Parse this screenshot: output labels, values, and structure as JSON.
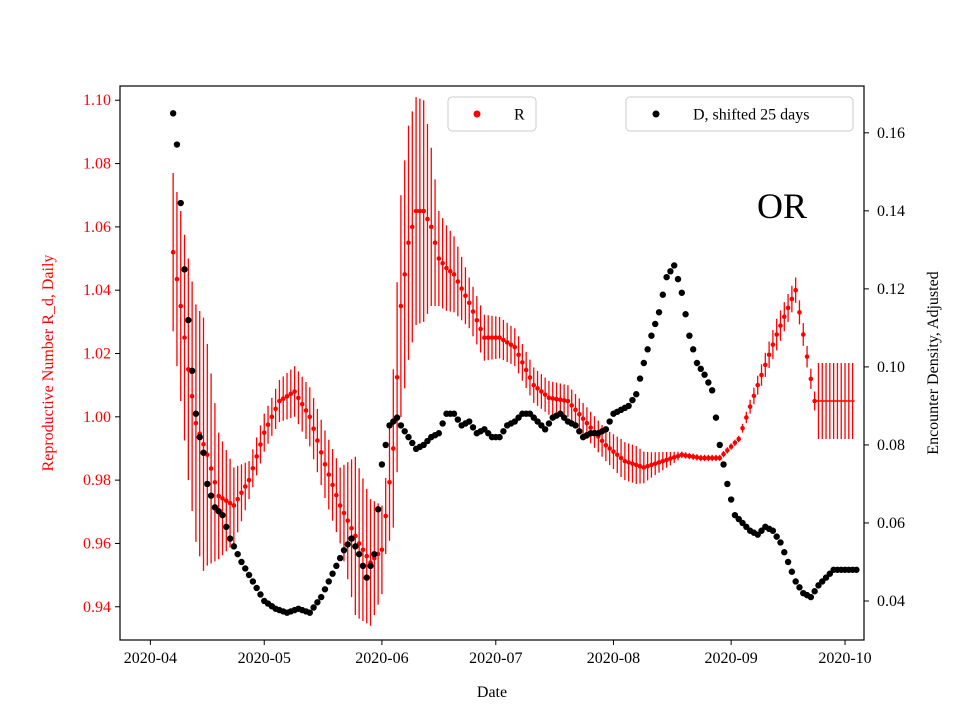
{
  "chart_data": {
    "type": "scatter",
    "annotation": "OR",
    "xlabel": "Date",
    "ylabel_left": "Reproductive Number R_d, Daily",
    "ylabel_right": "Encounter Density, Adjusted",
    "x_ticks": [
      "2020-04",
      "2020-05",
      "2020-06",
      "2020-07",
      "2020-08",
      "2020-09",
      "2020-10"
    ],
    "y_left_ticks": [
      "0.94",
      "0.96",
      "0.98",
      "1.00",
      "1.02",
      "1.04",
      "1.06",
      "1.08",
      "1.10"
    ],
    "y_right_ticks": [
      "0.04",
      "0.06",
      "0.08",
      "0.10",
      "0.12",
      "0.14",
      "0.16"
    ],
    "x_range_days": [
      -8,
      188
    ],
    "y_left_range": [
      0.9295,
      1.1045
    ],
    "y_right_range": [
      0.03,
      0.172
    ],
    "colors": {
      "R": "#ff0000",
      "D": "#000000",
      "left_axis": "#ff0000",
      "frame": "#000000"
    },
    "legend_R": "R",
    "legend_D": "D, shifted 25 days",
    "series": [
      {
        "name": "R",
        "note": "x = days since 2020-04-01; interior curve sampled at key points",
        "x": [
          6,
          8,
          10,
          12,
          15,
          18,
          22,
          26,
          30,
          34,
          38,
          42,
          46,
          50,
          55,
          58,
          61,
          64,
          66,
          68,
          70,
          72,
          74,
          76,
          78,
          80,
          84,
          88,
          92,
          96,
          101,
          105,
          110,
          115,
          120,
          125,
          130,
          135,
          140,
          145,
          150,
          155,
          160,
          165,
          170,
          175,
          180,
          185
        ],
        "y": [
          1.052,
          1.035,
          1.015,
          0.998,
          0.988,
          0.975,
          0.972,
          0.98,
          0.995,
          1.005,
          1.008,
          1.0,
          0.985,
          0.972,
          0.96,
          0.954,
          0.958,
          0.99,
          1.035,
          1.055,
          1.065,
          1.065,
          1.06,
          1.05,
          1.047,
          1.045,
          1.036,
          1.025,
          1.025,
          1.022,
          1.01,
          1.006,
          1.005,
          0.998,
          0.991,
          0.986,
          0.984,
          0.986,
          0.988,
          0.987,
          0.987,
          0.993,
          1.01,
          1.026,
          1.04,
          1.005,
          1.005,
          1.005
        ],
        "error_band": [
          [
            6,
            0.025
          ],
          [
            10,
            0.035
          ],
          [
            14,
            0.04
          ],
          [
            18,
            0.02
          ],
          [
            22,
            0.012
          ],
          [
            26,
            0.006
          ],
          [
            32,
            0.006
          ],
          [
            38,
            0.008
          ],
          [
            44,
            0.01
          ],
          [
            50,
            0.012
          ],
          [
            54,
            0.025
          ],
          [
            58,
            0.02
          ],
          [
            62,
            0.012
          ],
          [
            64,
            0.025
          ],
          [
            66,
            0.035
          ],
          [
            68,
            0.037
          ],
          [
            72,
            0.035
          ],
          [
            76,
            0.015
          ],
          [
            80,
            0.012
          ],
          [
            84,
            0.008
          ],
          [
            95,
            0.006
          ],
          [
            110,
            0.005
          ],
          [
            120,
            0.005
          ],
          [
            124,
            0.006
          ],
          [
            128,
            0.006
          ],
          [
            132,
            0.004
          ],
          [
            140,
            0.001
          ],
          [
            155,
            0.001
          ],
          [
            165,
            0.005
          ],
          [
            175,
            0.003
          ],
          [
            176,
            0.012
          ],
          [
            185,
            0.012
          ]
        ]
      },
      {
        "name": "D, shifted 25 days",
        "note": "x = days since 2020-04-01",
        "x": [
          6,
          7,
          8,
          9,
          10,
          11,
          12,
          13,
          14,
          15,
          17,
          19,
          21,
          24,
          27,
          30,
          33,
          36,
          39,
          42,
          45,
          48,
          51,
          53,
          55,
          57,
          59,
          61,
          63,
          65,
          66,
          68,
          70,
          72,
          74,
          76,
          78,
          80,
          82,
          84,
          86,
          88,
          90,
          92,
          94,
          96,
          98,
          100,
          102,
          104,
          106,
          108,
          110,
          112,
          114,
          116,
          118,
          120,
          122,
          124,
          126,
          128,
          130,
          132,
          134,
          136,
          138,
          140,
          142,
          144,
          146,
          148,
          150,
          152,
          154,
          156,
          158,
          160,
          162,
          164,
          166,
          168,
          170,
          172,
          174,
          176,
          178,
          180,
          182,
          184,
          186
        ],
        "y": [
          0.165,
          0.157,
          0.142,
          0.125,
          0.112,
          0.099,
          0.088,
          0.082,
          0.078,
          0.07,
          0.064,
          0.062,
          0.056,
          0.05,
          0.045,
          0.04,
          0.038,
          0.037,
          0.038,
          0.037,
          0.041,
          0.047,
          0.053,
          0.056,
          0.052,
          0.046,
          0.052,
          0.075,
          0.085,
          0.087,
          0.085,
          0.082,
          0.079,
          0.08,
          0.082,
          0.083,
          0.088,
          0.088,
          0.085,
          0.086,
          0.083,
          0.084,
          0.082,
          0.082,
          0.085,
          0.086,
          0.088,
          0.088,
          0.086,
          0.084,
          0.087,
          0.088,
          0.086,
          0.085,
          0.082,
          0.083,
          0.083,
          0.084,
          0.088,
          0.089,
          0.09,
          0.093,
          0.101,
          0.108,
          0.114,
          0.123,
          0.126,
          0.119,
          0.108,
          0.101,
          0.098,
          0.094,
          0.08,
          0.07,
          0.062,
          0.06,
          0.058,
          0.057,
          0.059,
          0.058,
          0.055,
          0.05,
          0.045,
          0.042,
          0.041,
          0.044,
          0.046,
          0.048,
          0.048,
          0.048,
          0.048
        ]
      }
    ]
  }
}
